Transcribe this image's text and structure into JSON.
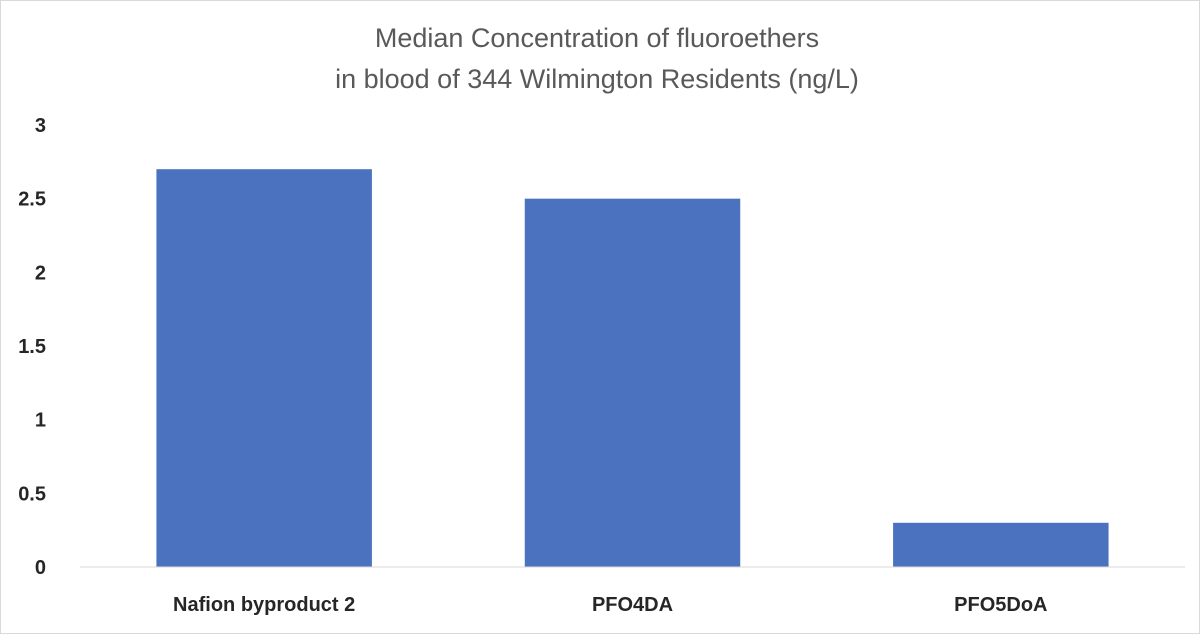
{
  "chart_data": {
    "type": "bar",
    "title_lines": [
      "Median Concentration of fluoroethers",
      "in blood of 344 Wilmington Residents (ng/L)"
    ],
    "categories": [
      "Nafion byproduct 2",
      "PFO4DA",
      "PFO5DoA"
    ],
    "values": [
      2.7,
      2.5,
      0.3
    ],
    "y_ticks": [
      "0",
      "0.5",
      "1",
      "1.5",
      "2",
      "2.5",
      "3"
    ],
    "ylim": [
      0,
      3
    ],
    "xlabel": "",
    "ylabel": "",
    "grid": false,
    "legend": "none",
    "bar_color": "#4a72be"
  }
}
